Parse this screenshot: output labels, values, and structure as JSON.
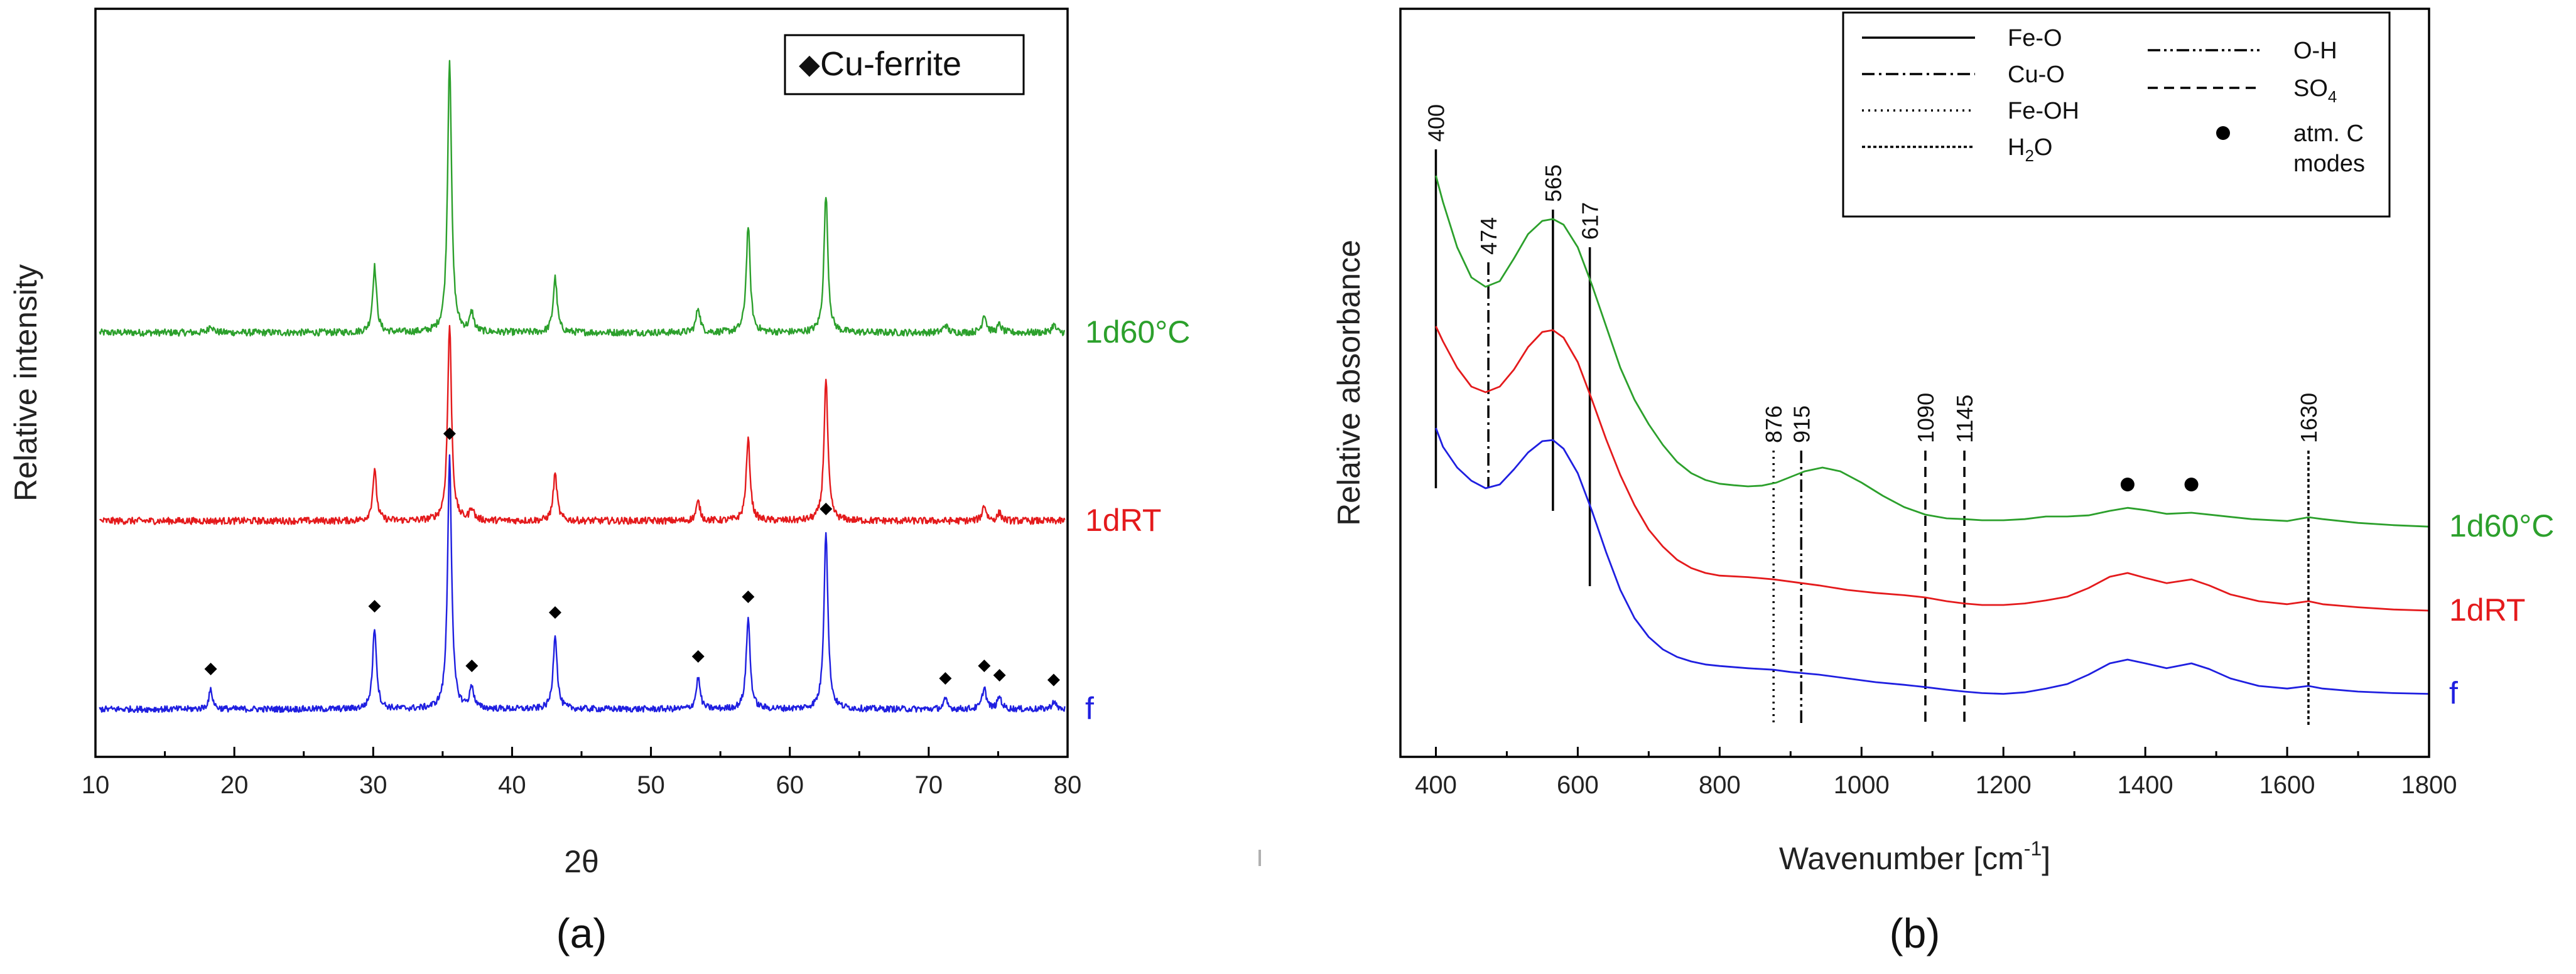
{
  "chart_data": [
    {
      "panel": "(a)",
      "type": "line",
      "xlabel": "2θ",
      "ylabel": "Relative intensity",
      "xlim": [
        10,
        80
      ],
      "xticks": [
        10,
        20,
        30,
        40,
        50,
        60,
        70,
        80
      ],
      "y_ticks_shown": false,
      "legend": {
        "marker": "◆",
        "label": "Cu-ferrite",
        "placement": "top-right"
      },
      "series": [
        {
          "name": "1d60°C",
          "color": "#2ca02c",
          "baseline": 2.4,
          "noise": 0.022,
          "peaks": [
            [
              18.3,
              0.05
            ],
            [
              30.1,
              0.42
            ],
            [
              35.5,
              1.75
            ],
            [
              37.1,
              0.12
            ],
            [
              43.1,
              0.35
            ],
            [
              53.4,
              0.16
            ],
            [
              57.0,
              0.68
            ],
            [
              62.6,
              0.88
            ],
            [
              71.2,
              0.05
            ],
            [
              74.0,
              0.12
            ],
            [
              75.1,
              0.05
            ],
            [
              79.0,
              0.05
            ]
          ]
        },
        {
          "name": "1dRT",
          "color": "#e41a1c",
          "baseline": 1.2,
          "noise": 0.022,
          "peaks": [
            [
              30.1,
              0.32
            ],
            [
              35.5,
              1.25
            ],
            [
              37.1,
              0.08
            ],
            [
              43.1,
              0.3
            ],
            [
              53.4,
              0.12
            ],
            [
              57.0,
              0.52
            ],
            [
              62.6,
              0.9
            ],
            [
              74.0,
              0.1
            ],
            [
              75.1,
              0.05
            ]
          ]
        },
        {
          "name": "f",
          "color": "#1f1fe0",
          "baseline": 0.0,
          "noise": 0.02,
          "peaks": [
            [
              18.3,
              0.12
            ],
            [
              30.1,
              0.52
            ],
            [
              35.5,
              1.62
            ],
            [
              37.1,
              0.14
            ],
            [
              43.1,
              0.48
            ],
            [
              53.4,
              0.2
            ],
            [
              57.0,
              0.58
            ],
            [
              62.6,
              1.14
            ],
            [
              71.2,
              0.06
            ],
            [
              74.0,
              0.14
            ],
            [
              75.1,
              0.08
            ],
            [
              79.0,
              0.05
            ]
          ]
        }
      ],
      "peak_markers_on": "f",
      "peak_marker_positions": [
        18.3,
        30.1,
        35.5,
        37.1,
        43.1,
        53.4,
        57.0,
        62.6,
        71.2,
        74.0,
        75.1,
        79.0
      ]
    },
    {
      "panel": "(b)",
      "type": "line",
      "xlabel": "Wavenumber [cm",
      "xlabel_sup": "-1",
      "xlabel_end": "]",
      "ylabel": "Relative absorbance",
      "xlim": [
        350,
        1800
      ],
      "xticks": [
        400,
        600,
        800,
        1000,
        1200,
        1400,
        1600,
        1800
      ],
      "y_ticks_shown": false,
      "series": [
        {
          "name": "1d60°C",
          "color": "#2ca02c",
          "points": [
            [
              400,
              14.5
            ],
            [
              410,
              13.8
            ],
            [
              430,
              12.6
            ],
            [
              450,
              11.8
            ],
            [
              470,
              11.55
            ],
            [
              490,
              11.7
            ],
            [
              510,
              12.3
            ],
            [
              530,
              12.95
            ],
            [
              550,
              13.3
            ],
            [
              565,
              13.35
            ],
            [
              580,
              13.2
            ],
            [
              600,
              12.6
            ],
            [
              620,
              11.6
            ],
            [
              640,
              10.5
            ],
            [
              660,
              9.4
            ],
            [
              680,
              8.55
            ],
            [
              700,
              7.9
            ],
            [
              720,
              7.35
            ],
            [
              740,
              6.9
            ],
            [
              760,
              6.6
            ],
            [
              780,
              6.42
            ],
            [
              800,
              6.32
            ],
            [
              820,
              6.28
            ],
            [
              840,
              6.25
            ],
            [
              860,
              6.27
            ],
            [
              880,
              6.35
            ],
            [
              900,
              6.5
            ],
            [
              920,
              6.65
            ],
            [
              945,
              6.75
            ],
            [
              970,
              6.65
            ],
            [
              1000,
              6.35
            ],
            [
              1030,
              6.0
            ],
            [
              1060,
              5.7
            ],
            [
              1090,
              5.5
            ],
            [
              1120,
              5.4
            ],
            [
              1145,
              5.38
            ],
            [
              1170,
              5.35
            ],
            [
              1200,
              5.35
            ],
            [
              1230,
              5.38
            ],
            [
              1260,
              5.45
            ],
            [
              1290,
              5.45
            ],
            [
              1320,
              5.48
            ],
            [
              1350,
              5.6
            ],
            [
              1375,
              5.68
            ],
            [
              1400,
              5.62
            ],
            [
              1430,
              5.52
            ],
            [
              1465,
              5.55
            ],
            [
              1500,
              5.48
            ],
            [
              1550,
              5.38
            ],
            [
              1600,
              5.33
            ],
            [
              1630,
              5.43
            ],
            [
              1650,
              5.38
            ],
            [
              1700,
              5.28
            ],
            [
              1750,
              5.22
            ],
            [
              1800,
              5.18
            ]
          ]
        },
        {
          "name": "1dRT",
          "color": "#e41a1c",
          "points": [
            [
              400,
              10.5
            ],
            [
              410,
              10.1
            ],
            [
              430,
              9.4
            ],
            [
              450,
              8.9
            ],
            [
              470,
              8.75
            ],
            [
              490,
              8.9
            ],
            [
              510,
              9.35
            ],
            [
              530,
              9.95
            ],
            [
              550,
              10.35
            ],
            [
              565,
              10.4
            ],
            [
              580,
              10.2
            ],
            [
              600,
              9.55
            ],
            [
              620,
              8.55
            ],
            [
              640,
              7.5
            ],
            [
              660,
              6.55
            ],
            [
              680,
              5.75
            ],
            [
              700,
              5.1
            ],
            [
              720,
              4.65
            ],
            [
              740,
              4.3
            ],
            [
              760,
              4.08
            ],
            [
              780,
              3.95
            ],
            [
              800,
              3.88
            ],
            [
              840,
              3.84
            ],
            [
              876,
              3.78
            ],
            [
              900,
              3.72
            ],
            [
              940,
              3.62
            ],
            [
              980,
              3.5
            ],
            [
              1020,
              3.42
            ],
            [
              1060,
              3.36
            ],
            [
              1090,
              3.3
            ],
            [
              1120,
              3.2
            ],
            [
              1145,
              3.14
            ],
            [
              1170,
              3.1
            ],
            [
              1200,
              3.1
            ],
            [
              1230,
              3.14
            ],
            [
              1260,
              3.22
            ],
            [
              1290,
              3.32
            ],
            [
              1320,
              3.55
            ],
            [
              1350,
              3.85
            ],
            [
              1375,
              3.95
            ],
            [
              1400,
              3.82
            ],
            [
              1430,
              3.68
            ],
            [
              1465,
              3.78
            ],
            [
              1490,
              3.62
            ],
            [
              1520,
              3.38
            ],
            [
              1560,
              3.2
            ],
            [
              1600,
              3.12
            ],
            [
              1630,
              3.2
            ],
            [
              1650,
              3.12
            ],
            [
              1700,
              3.04
            ],
            [
              1750,
              2.98
            ],
            [
              1800,
              2.95
            ]
          ]
        },
        {
          "name": "f",
          "color": "#1f1fe0",
          "points": [
            [
              400,
              7.8
            ],
            [
              410,
              7.3
            ],
            [
              430,
              6.75
            ],
            [
              450,
              6.4
            ],
            [
              470,
              6.2
            ],
            [
              490,
              6.3
            ],
            [
              510,
              6.7
            ],
            [
              530,
              7.15
            ],
            [
              550,
              7.45
            ],
            [
              565,
              7.48
            ],
            [
              580,
              7.25
            ],
            [
              600,
              6.6
            ],
            [
              620,
              5.6
            ],
            [
              640,
              4.5
            ],
            [
              660,
              3.5
            ],
            [
              680,
              2.75
            ],
            [
              700,
              2.25
            ],
            [
              720,
              1.92
            ],
            [
              740,
              1.72
            ],
            [
              760,
              1.6
            ],
            [
              780,
              1.52
            ],
            [
              800,
              1.48
            ],
            [
              840,
              1.42
            ],
            [
              876,
              1.38
            ],
            [
              900,
              1.32
            ],
            [
              940,
              1.25
            ],
            [
              980,
              1.15
            ],
            [
              1020,
              1.05
            ],
            [
              1060,
              0.98
            ],
            [
              1090,
              0.92
            ],
            [
              1120,
              0.85
            ],
            [
              1145,
              0.8
            ],
            [
              1170,
              0.76
            ],
            [
              1200,
              0.74
            ],
            [
              1230,
              0.78
            ],
            [
              1260,
              0.88
            ],
            [
              1290,
              1.0
            ],
            [
              1320,
              1.25
            ],
            [
              1350,
              1.55
            ],
            [
              1375,
              1.65
            ],
            [
              1400,
              1.55
            ],
            [
              1430,
              1.42
            ],
            [
              1465,
              1.55
            ],
            [
              1490,
              1.4
            ],
            [
              1520,
              1.15
            ],
            [
              1560,
              0.95
            ],
            [
              1600,
              0.88
            ],
            [
              1630,
              0.95
            ],
            [
              1650,
              0.88
            ],
            [
              1700,
              0.8
            ],
            [
              1750,
              0.76
            ],
            [
              1800,
              0.74
            ]
          ]
        }
      ],
      "reference_lines": [
        {
          "x": 400,
          "style": "Fe-O",
          "top": 15.2,
          "bottom": 6.2,
          "label": "400"
        },
        {
          "x": 474,
          "style": "Cu-O",
          "top": 12.2,
          "bottom": 6.2,
          "label": "474"
        },
        {
          "x": 565,
          "style": "Fe-O",
          "top": 13.6,
          "bottom": 5.6,
          "label": "565"
        },
        {
          "x": 617,
          "style": "Fe-O",
          "top": 12.6,
          "bottom": 3.6,
          "label": "617"
        },
        {
          "x": 876,
          "style": "Fe-OH",
          "top": 7.2,
          "bottom": -0.1,
          "label": "876"
        },
        {
          "x": 915,
          "style": "O-H",
          "top": 7.2,
          "bottom": -0.1,
          "label": "915"
        },
        {
          "x": 1090,
          "style": "SO4",
          "top": 7.2,
          "bottom": -0.1,
          "label": "1090"
        },
        {
          "x": 1145,
          "style": "SO4",
          "top": 7.2,
          "bottom": -0.1,
          "label": "1145"
        },
        {
          "x": 1630,
          "style": "H2O",
          "top": 7.2,
          "bottom": -0.1,
          "label": "1630"
        }
      ],
      "atm_c_markers": [
        1375,
        1465
      ],
      "atm_c_marker_y": 6.3,
      "legend": {
        "placement": "top",
        "entries": [
          {
            "style": "Fe-O",
            "label": "Fe-O"
          },
          {
            "style": "Cu-O",
            "label": "Cu-O"
          },
          {
            "style": "Fe-OH",
            "label": "Fe-OH"
          },
          {
            "style": "H2O",
            "label": "H",
            "sub": "2",
            "suffix": "O"
          },
          {
            "style": "O-H",
            "label": "O-H"
          },
          {
            "style": "SO4",
            "label": "SO",
            "sub": "4",
            "suffix": ""
          },
          {
            "style": "dot",
            "label": "atm. C",
            "label2": "modes"
          }
        ]
      }
    }
  ],
  "panel_labels": [
    "(a)",
    "(b)"
  ],
  "colors": {
    "axis": "#000000",
    "green": "#2ca02c",
    "red": "#e41a1c",
    "blue": "#1f1fe0"
  }
}
